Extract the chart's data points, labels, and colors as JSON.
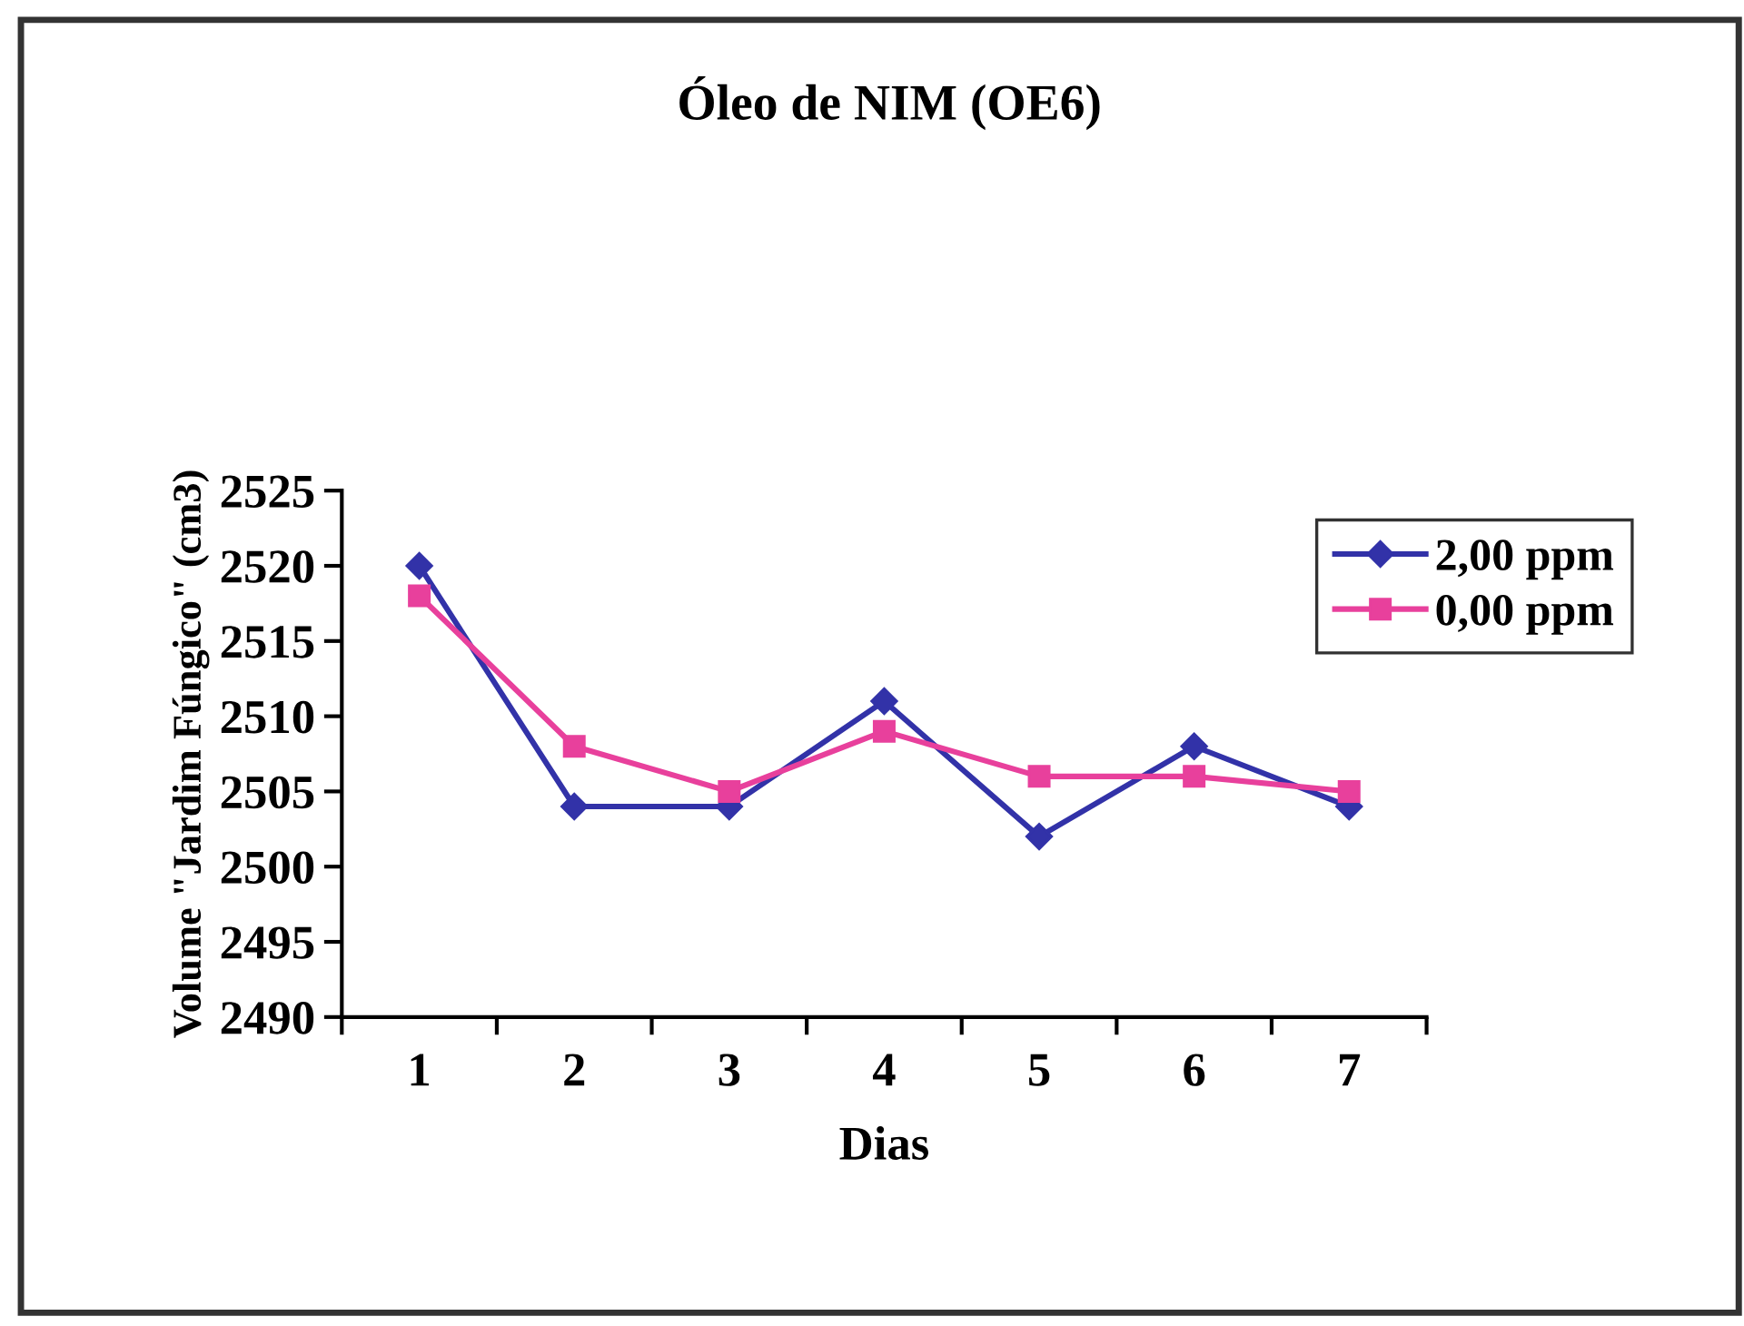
{
  "chart_data": {
    "type": "line",
    "title": "Óleo de NIM (OE6)",
    "xlabel": "Dias",
    "ylabel": "Volume \"Jardim Fúngico\" (cm3)",
    "categories": [
      "1",
      "2",
      "3",
      "4",
      "5",
      "6",
      "7"
    ],
    "series": [
      {
        "name": "2,00 ppm",
        "color": "#3232a8",
        "values": [
          2520,
          2504,
          2504,
          2511,
          2502,
          2508,
          2504
        ],
        "marker": "diamond"
      },
      {
        "name": "0,00 ppm",
        "color": "#e8409c",
        "values": [
          2518,
          2508,
          2505,
          2509,
          2506,
          2506,
          2505
        ],
        "marker": "square"
      }
    ],
    "ylim": [
      2490,
      2525
    ],
    "yticks": [
      2490,
      2495,
      2500,
      2505,
      2510,
      2515,
      2520,
      2525
    ],
    "grid": false,
    "legend": "right",
    "line_style": "solid"
  }
}
